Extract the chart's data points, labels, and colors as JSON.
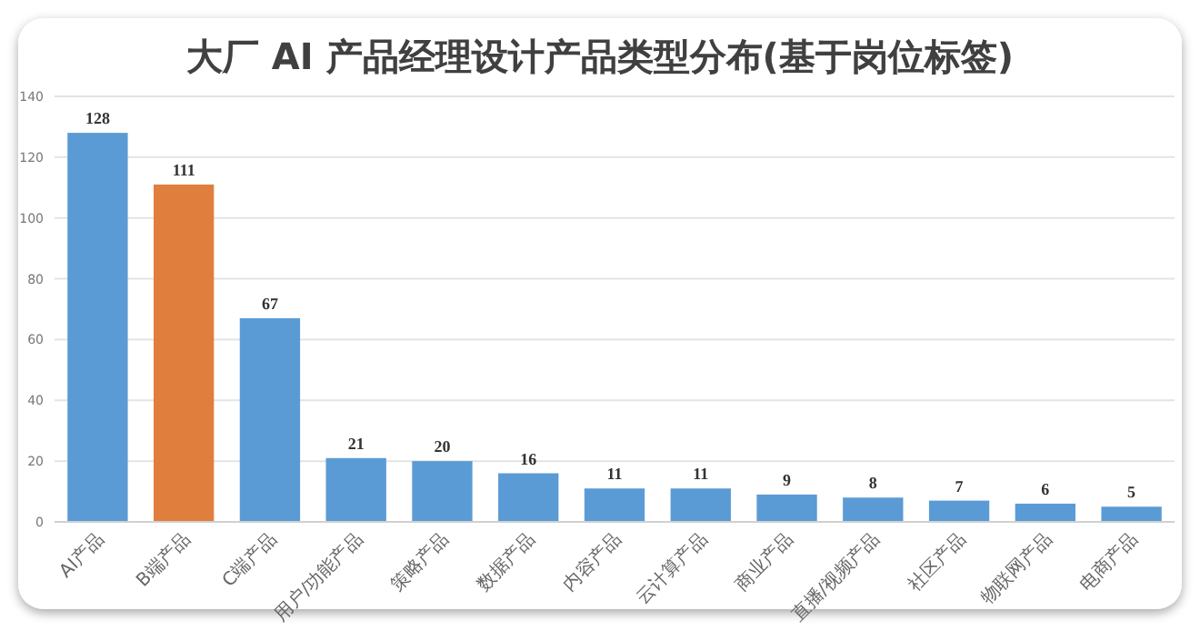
{
  "chart_data": {
    "type": "bar",
    "title": "大厂 AI 产品经理设计产品类型分布(基于岗位标签)",
    "categories": [
      "AI产品",
      "B端产品",
      "C端产品",
      "用户/功能产品",
      "策略产品",
      "数据产品",
      "内容产品",
      "云计算产品",
      "商业产品",
      "直播/视频产品",
      "社区产品",
      "物联网产品",
      "电商产品"
    ],
    "values": [
      128,
      111,
      67,
      21,
      20,
      16,
      11,
      11,
      9,
      8,
      7,
      6,
      5
    ],
    "colors": [
      "#5b9bd5",
      "#e07f3d",
      "#5b9bd5",
      "#5b9bd5",
      "#5b9bd5",
      "#5b9bd5",
      "#5b9bd5",
      "#5b9bd5",
      "#5b9bd5",
      "#5b9bd5",
      "#5b9bd5",
      "#5b9bd5",
      "#5b9bd5"
    ],
    "ylim": [
      0,
      140
    ],
    "yticks": [
      0,
      20,
      40,
      60,
      80,
      100,
      120,
      140
    ],
    "grid": "y",
    "data_labels": true
  }
}
